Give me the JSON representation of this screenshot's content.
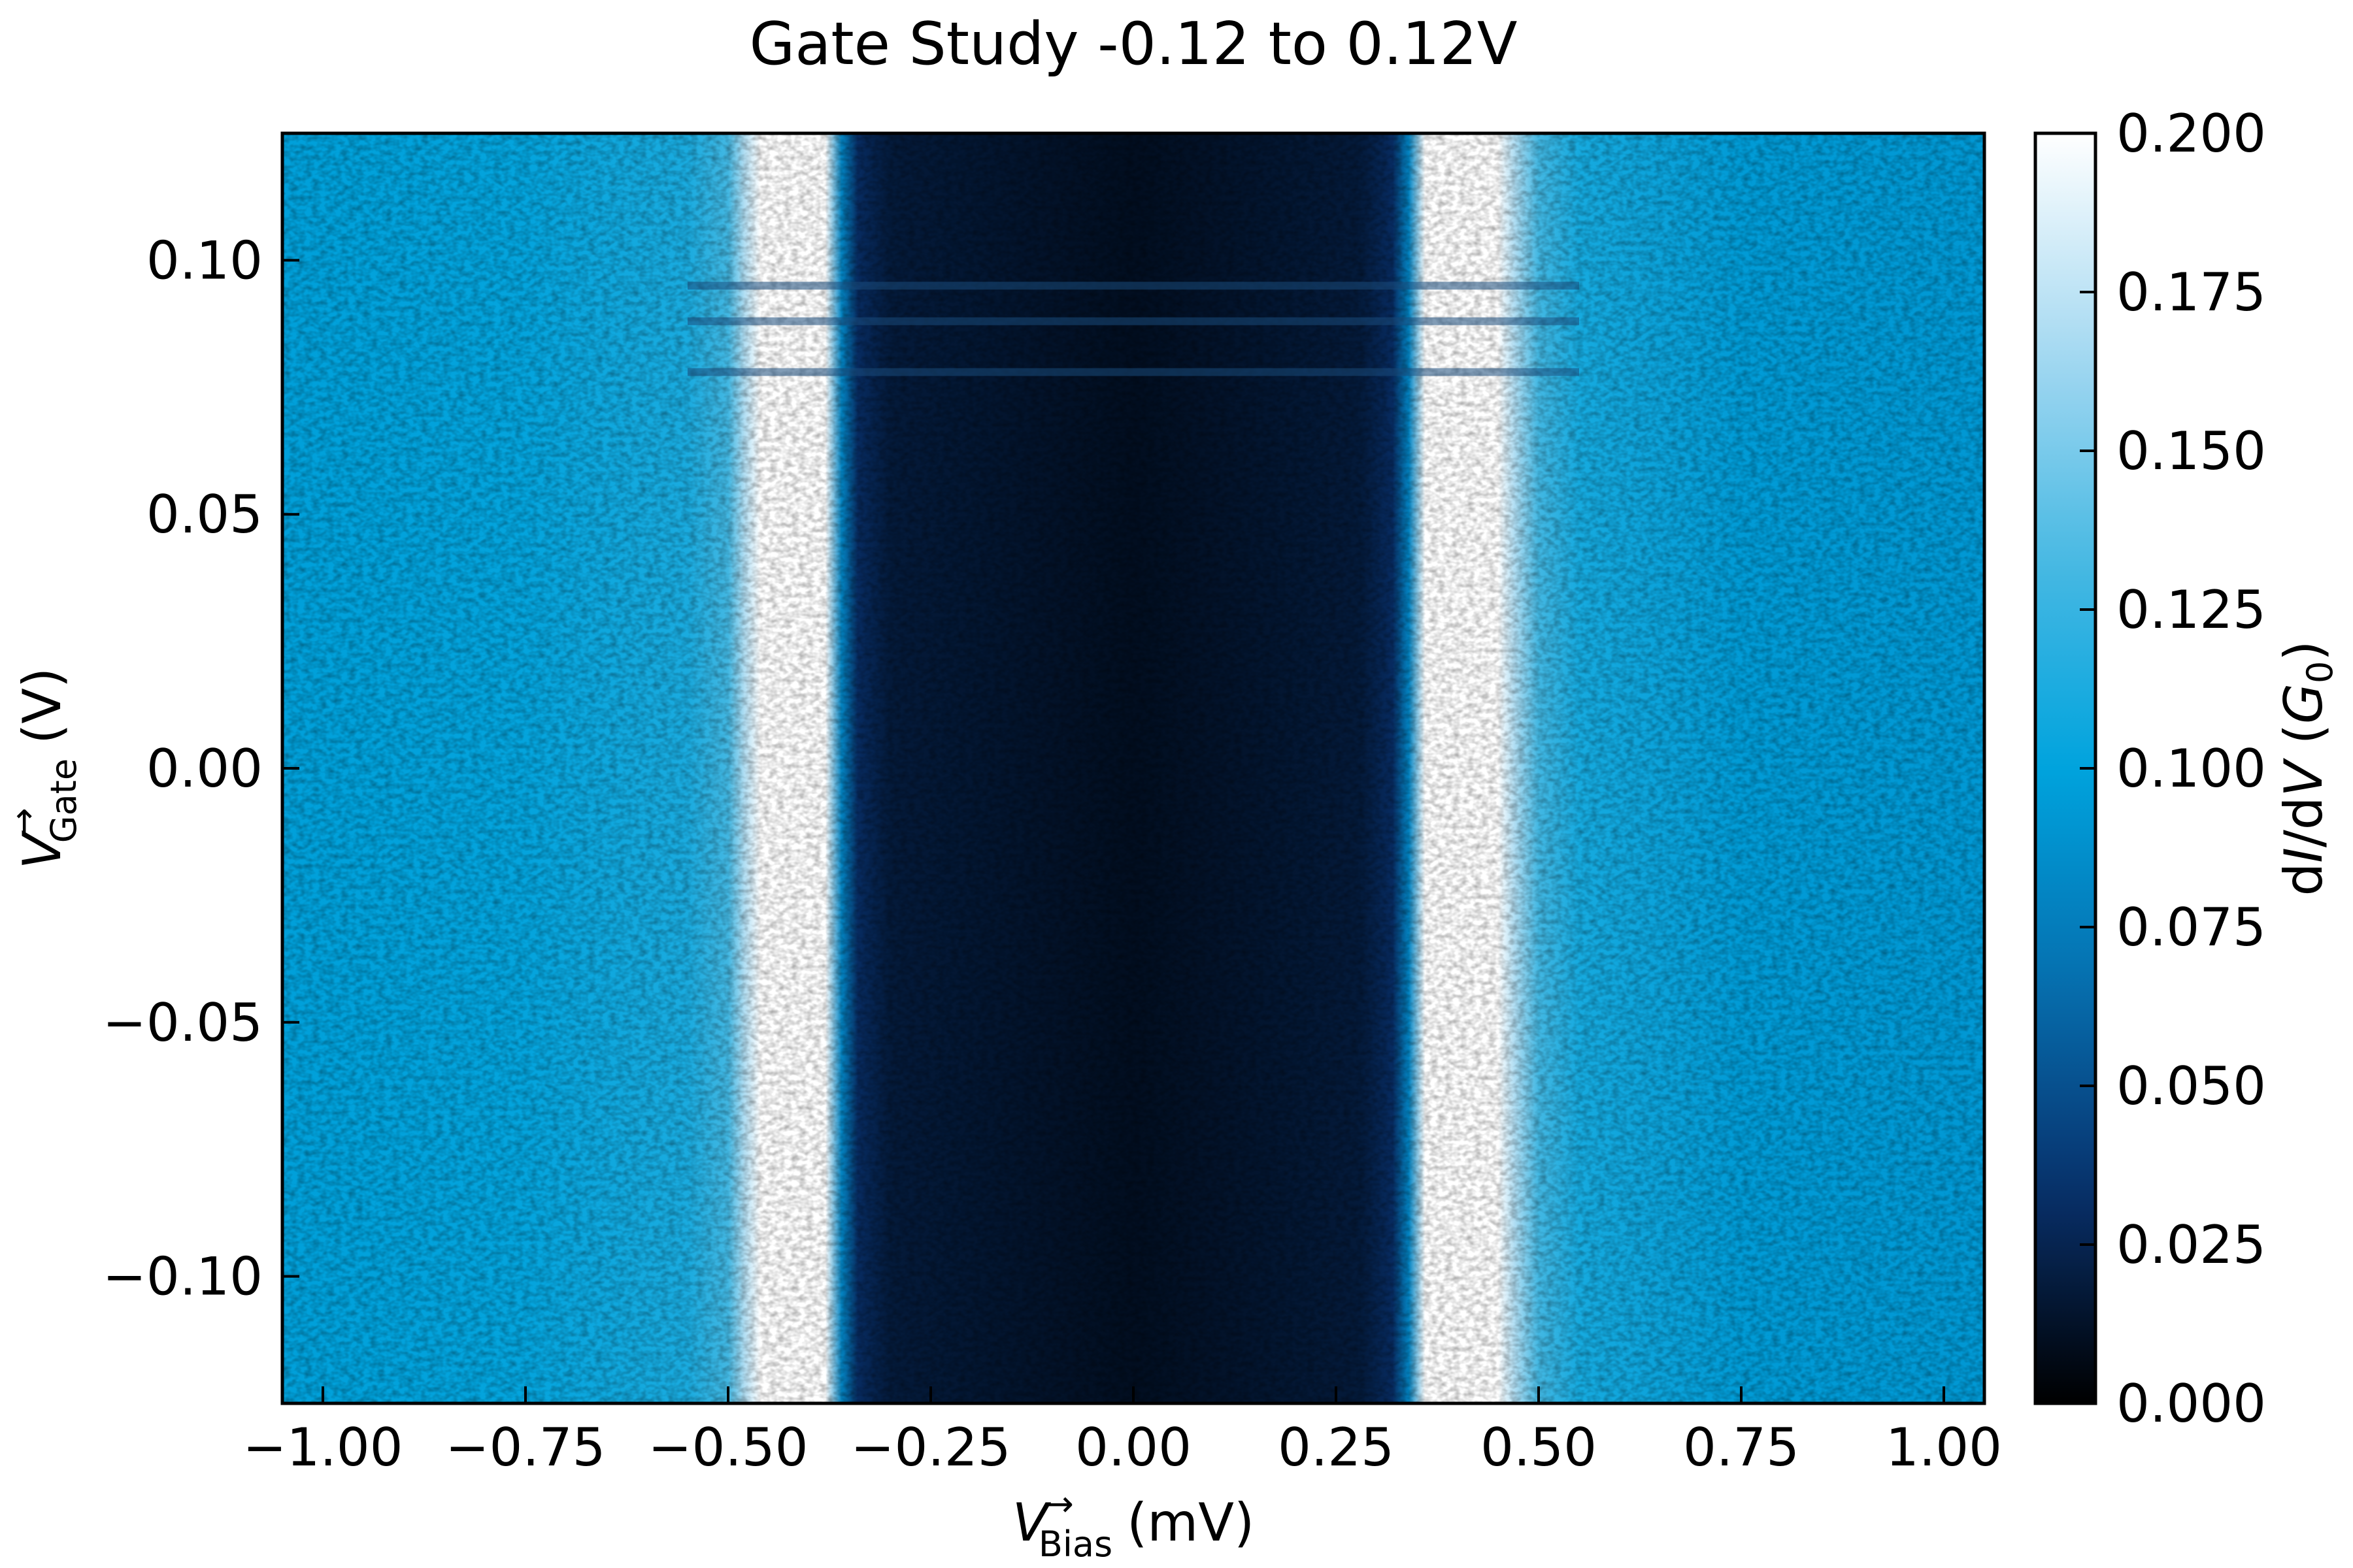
{
  "chart_data": {
    "type": "heatmap",
    "title": "Gate Study -0.12 to 0.12V",
    "xlabel": {
      "symbol": "V",
      "arrow": "→",
      "subscript": "Bias",
      "unit": "(mV)"
    },
    "ylabel": {
      "symbol": "V",
      "arrow": "→",
      "subscript": "Gate",
      "unit": "(V)"
    },
    "xlim": [
      -1.05,
      1.05
    ],
    "ylim": [
      -0.125,
      0.125
    ],
    "xticks": [
      {
        "value": -1.0,
        "label": "−1.00"
      },
      {
        "value": -0.75,
        "label": "−0.75"
      },
      {
        "value": -0.5,
        "label": "−0.50"
      },
      {
        "value": -0.25,
        "label": "−0.25"
      },
      {
        "value": 0.0,
        "label": "0.00"
      },
      {
        "value": 0.25,
        "label": "0.25"
      },
      {
        "value": 0.5,
        "label": "0.50"
      },
      {
        "value": 0.75,
        "label": "0.75"
      },
      {
        "value": 1.0,
        "label": "1.00"
      }
    ],
    "yticks": [
      {
        "value": -0.1,
        "label": "−0.10"
      },
      {
        "value": -0.05,
        "label": "−0.05"
      },
      {
        "value": 0.0,
        "label": "0.00"
      },
      {
        "value": 0.05,
        "label": "0.05"
      },
      {
        "value": 0.1,
        "label": "0.10"
      }
    ],
    "colorbar": {
      "label": {
        "prefix": "d",
        "i": "I",
        "mid": "/d",
        "v": "V",
        "unit_open": " (",
        "g": "G",
        "g_sub": "0",
        "unit_close": ")"
      },
      "range": [
        0.0,
        0.2
      ],
      "colormap": "Blues-dark-to-white",
      "colors": [
        "#000000",
        "#08306b",
        "#0570b0",
        "#00a3dd",
        "#49b9e3",
        "#a8daf2",
        "#ffffff"
      ],
      "ticks": [
        {
          "value": 0.0,
          "label": "0.000"
        },
        {
          "value": 0.025,
          "label": "0.025"
        },
        {
          "value": 0.05,
          "label": "0.050"
        },
        {
          "value": 0.075,
          "label": "0.075"
        },
        {
          "value": 0.1,
          "label": "0.100"
        },
        {
          "value": 0.125,
          "label": "0.125"
        },
        {
          "value": 0.15,
          "label": "0.150"
        },
        {
          "value": 0.175,
          "label": "0.175"
        },
        {
          "value": 0.2,
          "label": "0.200"
        }
      ]
    },
    "profile_vs_bias": [
      {
        "bias": -1.05,
        "didv": 0.098
      },
      {
        "bias": -0.75,
        "didv": 0.102
      },
      {
        "bias": -0.55,
        "didv": 0.112
      },
      {
        "bias": -0.5,
        "didv": 0.13
      },
      {
        "bias": -0.48,
        "didv": 0.17
      },
      {
        "bias": -0.46,
        "didv": 0.2
      },
      {
        "bias": -0.38,
        "didv": 0.2
      },
      {
        "bias": -0.36,
        "didv": 0.08
      },
      {
        "bias": -0.34,
        "didv": 0.03
      },
      {
        "bias": -0.3,
        "didv": 0.018
      },
      {
        "bias": 0.0,
        "didv": 0.01
      },
      {
        "bias": 0.28,
        "didv": 0.018
      },
      {
        "bias": 0.32,
        "didv": 0.03
      },
      {
        "bias": 0.34,
        "didv": 0.08
      },
      {
        "bias": 0.36,
        "didv": 0.2
      },
      {
        "bias": 0.45,
        "didv": 0.2
      },
      {
        "bias": 0.47,
        "didv": 0.17
      },
      {
        "bias": 0.5,
        "didv": 0.13
      },
      {
        "bias": 0.55,
        "didv": 0.11
      },
      {
        "bias": 0.75,
        "didv": 0.095
      },
      {
        "bias": 1.05,
        "didv": 0.093
      }
    ],
    "features": [
      {
        "description": "gap region (low conductance)",
        "bias_range": [
          -0.35,
          0.34
        ]
      },
      {
        "description": "coherence peak (saturated)",
        "bias_range": [
          -0.46,
          -0.37
        ]
      },
      {
        "description": "coherence peak (saturated)",
        "bias_range": [
          0.36,
          0.46
        ]
      },
      {
        "description": "horizontal streaks",
        "gate_values": [
          0.095,
          0.088,
          0.078
        ]
      }
    ]
  }
}
